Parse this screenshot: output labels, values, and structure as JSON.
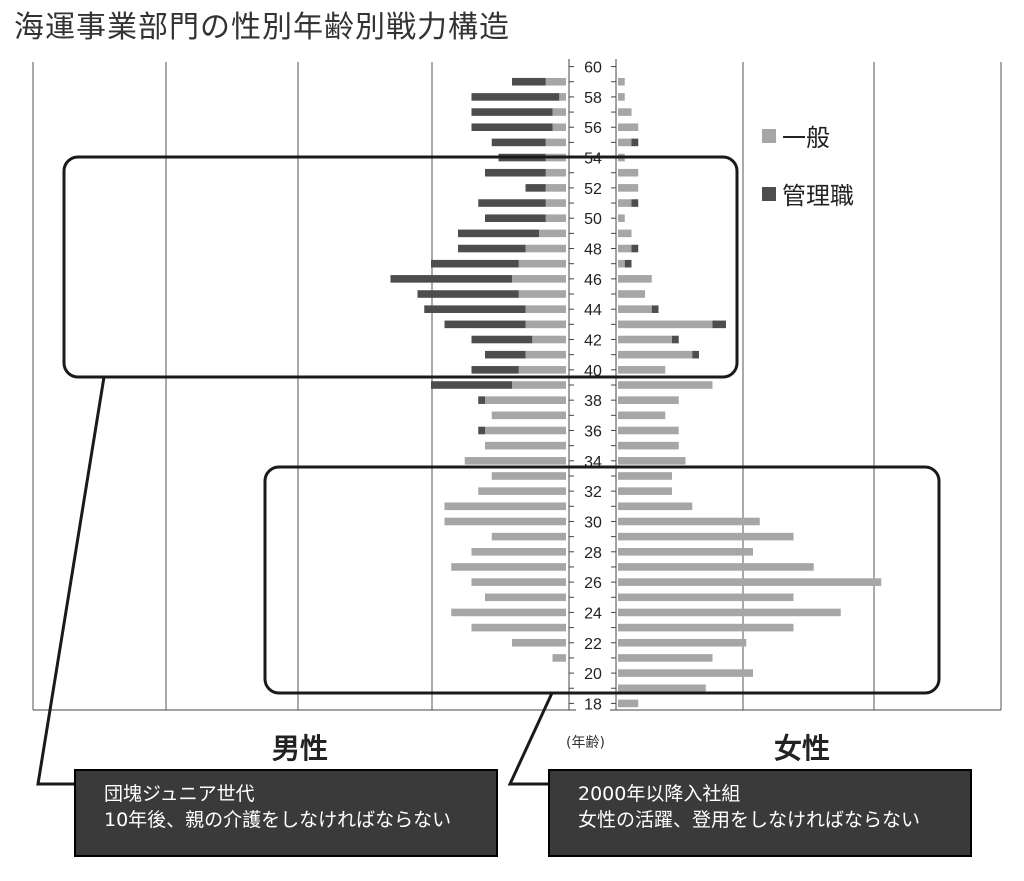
{
  "title": "海運事業部門の性別年齢別戦力構造",
  "legend": [
    {
      "label": "一般",
      "color": "#a6a6a6"
    },
    {
      "label": "管理職",
      "color": "#4d4d4d"
    }
  ],
  "side_labels": {
    "male": "男性",
    "female": "女性"
  },
  "axis_unit": "(年齢)",
  "callouts": {
    "left": {
      "line1": "団塊ジュニア世代",
      "line2": "10年後、親の介護をしなければならない"
    },
    "right": {
      "line1": "2000年以降入社組",
      "line2": "女性の活躍、登用をしなければならない"
    }
  },
  "chart_data": {
    "type": "bar",
    "orientation": "horizontal population pyramid",
    "y_ticks": [
      "60",
      "58",
      "56",
      "54",
      "52",
      "50",
      "48",
      "46",
      "44",
      "42",
      "40",
      "38",
      "36",
      "34",
      "32",
      "30",
      "28",
      "26",
      "24",
      "22",
      "20",
      "18"
    ],
    "ages": [
      60,
      59,
      58,
      57,
      56,
      55,
      54,
      53,
      52,
      51,
      50,
      49,
      48,
      47,
      46,
      45,
      44,
      43,
      42,
      41,
      40,
      39,
      38,
      37,
      36,
      35,
      34,
      33,
      32,
      31,
      30,
      29,
      28,
      27,
      26,
      25,
      24,
      23,
      22,
      21,
      20,
      19,
      18
    ],
    "series": [
      {
        "name": "一般",
        "side": "male",
        "values": [
          0,
          3,
          1,
          2,
          2,
          3,
          3,
          3,
          3,
          3,
          3,
          4,
          6,
          7,
          8,
          7,
          6,
          6,
          5,
          6,
          7,
          8,
          12,
          11,
          12,
          12,
          15,
          11,
          13,
          18,
          18,
          11,
          14,
          17,
          14,
          12,
          17,
          14,
          8,
          2,
          0,
          0,
          0
        ]
      },
      {
        "name": "管理職",
        "side": "male",
        "values": [
          0,
          5,
          13,
          12,
          12,
          8,
          7,
          9,
          3,
          10,
          9,
          12,
          10,
          13,
          18,
          15,
          15,
          12,
          9,
          6,
          7,
          12,
          1,
          0,
          1,
          0,
          0,
          0,
          0,
          0,
          0,
          0,
          0,
          0,
          0,
          0,
          0,
          0,
          0,
          0,
          0,
          0,
          0
        ]
      },
      {
        "name": "一般",
        "side": "female",
        "values": [
          0,
          1,
          1,
          2,
          3,
          2,
          1,
          3,
          3,
          2,
          1,
          2,
          2,
          1,
          5,
          4,
          5,
          14,
          8,
          11,
          7,
          14,
          9,
          7,
          9,
          9,
          10,
          8,
          8,
          11,
          21,
          26,
          20,
          29,
          39,
          26,
          33,
          26,
          19,
          14,
          20,
          13,
          3
        ]
      },
      {
        "name": "管理職",
        "side": "female",
        "values": [
          0,
          0,
          0,
          0,
          0,
          1,
          0,
          0,
          0,
          1,
          0,
          0,
          1,
          1,
          0,
          0,
          1,
          2,
          1,
          1,
          0,
          0,
          0,
          0,
          0,
          0,
          0,
          0,
          0,
          0,
          0,
          0,
          0,
          0,
          0,
          0,
          0,
          0,
          0,
          0,
          0,
          0,
          0
        ]
      }
    ],
    "x_range": [
      -35,
      70
    ],
    "grid": true,
    "legend_position": "right"
  }
}
